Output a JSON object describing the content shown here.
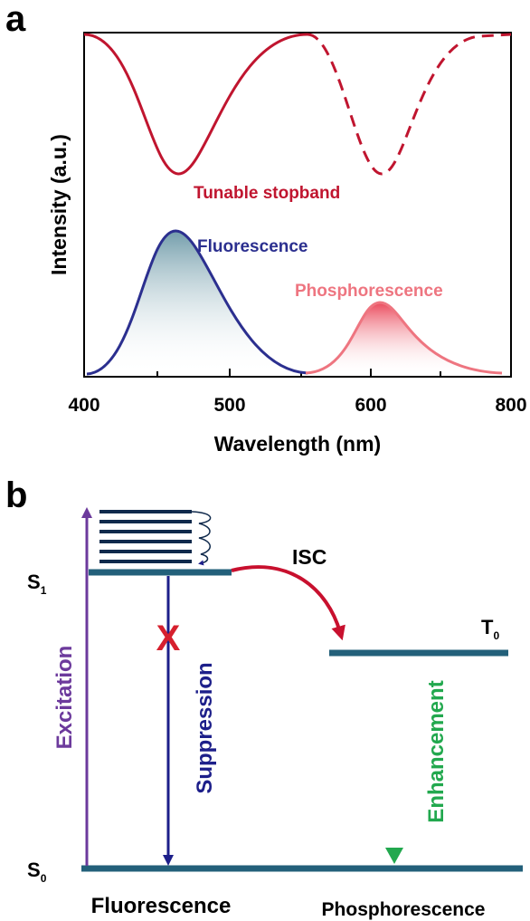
{
  "panel_a": {
    "label": "a",
    "ylabel": "Intensity (a.u.)",
    "xlabel": "Wavelength (nm)",
    "x_ticks": [
      "400",
      "500",
      "600",
      "800"
    ],
    "curve_labels": {
      "stopband": "Tunable stopband",
      "fluorescence": "Fluorescence",
      "phosphorescence": "Phosphorescence"
    },
    "colors": {
      "stopband": "#c0152f",
      "fluorescence": "#2b2f8f",
      "phosphorescence": "#ee7580"
    }
  },
  "panel_b": {
    "label": "b",
    "levels": {
      "s1": "S",
      "s1_sub": "1",
      "s0": "S",
      "s0_sub": "0",
      "t0": "T",
      "t0_sub": "0"
    },
    "labels": {
      "isc": "ISC",
      "excitation": "Excitation",
      "suppression": "Suppression",
      "enhancement": "Enhancement",
      "cross": "X"
    },
    "bottom_labels": {
      "fluorescence": "Fluorescence",
      "phosphorescence": "Phosphorescence"
    },
    "colors": {
      "level": "#23607a",
      "excitation": "#6c3a9c",
      "suppression": "#1d1f8a",
      "enhancement": "#22a84e",
      "isc_arrow": "#c8102e",
      "cross": "#d6202e",
      "vibrational": "#102a4c"
    }
  }
}
